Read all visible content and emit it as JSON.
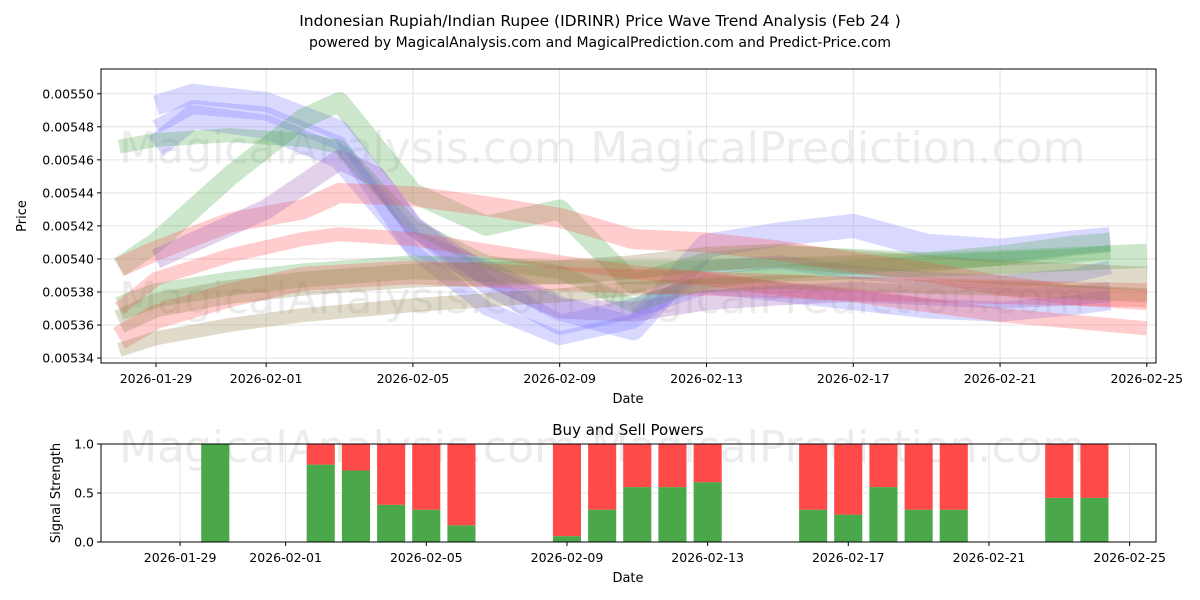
{
  "title_line1": "Indonesian Rupiah/Indian Rupee (IDRINR) Price Wave Trend Analysis (Feb 24 )",
  "title_line2": "powered by MagicalAnalysis.com and MagicalPrediction.com and Predict-Price.com",
  "watermarks": [
    "MagicalAnalysis.com",
    "MagicalPrediction.com"
  ],
  "colors": {
    "green": "#4aa84a",
    "red": "#ff4a4a",
    "blue": "#7878ff",
    "olive": "#8c7a3c"
  },
  "chart_data": [
    {
      "type": "line",
      "title": "",
      "xlabel": "Date",
      "ylabel": "Price",
      "xlim": [
        "2026-01-27 12:00",
        "2026-02-25 06:00"
      ],
      "ylim": [
        0.005337,
        0.005515
      ],
      "x_ticks": [
        "2026-01-29",
        "2026-02-01",
        "2026-02-05",
        "2026-02-09",
        "2026-02-13",
        "2026-02-17",
        "2026-02-21",
        "2026-02-25"
      ],
      "y_ticks": [
        "0.00534",
        "0.00536",
        "0.00538",
        "0.00540",
        "0.00542",
        "0.00544",
        "0.00546",
        "0.00548",
        "0.00550"
      ],
      "grid": true,
      "series": [
        {
          "name": "blue-wave-1",
          "color": "blue",
          "x": [
            "2026-01-29",
            "2026-01-30",
            "2026-02-01",
            "2026-02-03",
            "2026-02-05",
            "2026-02-07",
            "2026-02-09",
            "2026-02-11",
            "2026-02-13",
            "2026-02-15",
            "2026-02-17",
            "2026-02-19",
            "2026-02-21",
            "2026-02-23",
            "2026-02-24"
          ],
          "y": [
            0.005493,
            0.0055,
            0.005495,
            0.005478,
            0.00542,
            0.005385,
            0.00536,
            0.00537,
            0.005385,
            0.00538,
            0.005375,
            0.00537,
            0.005368,
            0.005372,
            0.005375
          ]
        },
        {
          "name": "blue-wave-2",
          "color": "blue",
          "x": [
            "2026-01-29",
            "2026-01-30",
            "2026-02-01",
            "2026-02-03",
            "2026-02-05",
            "2026-02-07",
            "2026-02-09",
            "2026-02-11",
            "2026-02-13",
            "2026-02-15",
            "2026-02-17",
            "2026-02-19",
            "2026-02-21",
            "2026-02-23",
            "2026-02-24"
          ],
          "y": [
            0.00548,
            0.005492,
            0.005488,
            0.00547,
            0.005405,
            0.00537,
            0.005352,
            0.005362,
            0.005395,
            0.005398,
            0.005392,
            0.005388,
            0.005386,
            0.00539,
            0.005395
          ]
        },
        {
          "name": "blue-wave-3",
          "color": "blue",
          "x": [
            "2026-01-29",
            "2026-01-30",
            "2026-02-01",
            "2026-02-03",
            "2026-02-05",
            "2026-02-07",
            "2026-02-09",
            "2026-02-11",
            "2026-02-13",
            "2026-02-15",
            "2026-02-17",
            "2026-02-19",
            "2026-02-21",
            "2026-02-23",
            "2026-02-24"
          ],
          "y": [
            0.005468,
            0.005486,
            0.00548,
            0.005462,
            0.00541,
            0.005392,
            0.00537,
            0.005358,
            0.005408,
            0.005415,
            0.00542,
            0.005408,
            0.005405,
            0.00541,
            0.005412
          ]
        },
        {
          "name": "green-wave-1",
          "color": "green",
          "x": [
            "2026-01-28",
            "2026-01-29",
            "2026-01-31",
            "2026-02-02",
            "2026-02-03",
            "2026-02-05",
            "2026-02-07",
            "2026-02-09",
            "2026-02-11",
            "2026-02-13",
            "2026-02-15",
            "2026-02-17",
            "2026-02-19",
            "2026-02-21",
            "2026-02-23",
            "2026-02-24"
          ],
          "y": [
            0.005395,
            0.00541,
            0.00545,
            0.005485,
            0.005495,
            0.00544,
            0.00542,
            0.00543,
            0.005385,
            0.005398,
            0.005402,
            0.0054,
            0.005398,
            0.005402,
            0.005408,
            0.00541
          ]
        },
        {
          "name": "green-wave-2",
          "color": "green",
          "x": [
            "2026-01-28",
            "2026-01-29",
            "2026-01-31",
            "2026-02-02",
            "2026-02-03",
            "2026-02-05",
            "2026-02-07",
            "2026-02-09",
            "2026-02-11",
            "2026-02-13",
            "2026-02-15",
            "2026-02-17",
            "2026-02-19",
            "2026-02-21",
            "2026-02-23",
            "2026-02-24"
          ],
          "y": [
            0.005468,
            0.005472,
            0.005475,
            0.005472,
            0.005468,
            0.00542,
            0.005398,
            0.005392,
            0.005372,
            0.005386,
            0.005392,
            0.005395,
            0.005398,
            0.0054,
            0.005402,
            0.005404
          ]
        },
        {
          "name": "green-wave-3",
          "color": "green",
          "x": [
            "2026-01-28",
            "2026-01-29",
            "2026-01-31",
            "2026-02-02",
            "2026-02-05",
            "2026-02-09",
            "2026-02-13",
            "2026-02-17",
            "2026-02-21",
            "2026-02-25"
          ],
          "y": [
            0.00537,
            0.005378,
            0.005385,
            0.00539,
            0.005395,
            0.005392,
            0.005392,
            0.005395,
            0.005398,
            0.005402
          ]
        },
        {
          "name": "red-wave-1",
          "color": "red",
          "x": [
            "2026-01-28",
            "2026-01-29",
            "2026-01-31",
            "2026-02-02",
            "2026-02-03",
            "2026-02-05",
            "2026-02-07",
            "2026-02-09",
            "2026-02-11",
            "2026-02-13",
            "2026-02-15",
            "2026-02-17",
            "2026-02-19",
            "2026-02-21",
            "2026-02-23",
            "2026-02-25"
          ],
          "y": [
            0.005395,
            0.005405,
            0.005422,
            0.00543,
            0.00544,
            0.005438,
            0.005432,
            0.005425,
            0.005412,
            0.00541,
            0.005405,
            0.005398,
            0.005392,
            0.005384,
            0.005378,
            0.005375
          ]
        },
        {
          "name": "red-wave-2",
          "color": "red",
          "x": [
            "2026-01-28",
            "2026-01-29",
            "2026-01-31",
            "2026-02-02",
            "2026-02-03",
            "2026-02-05",
            "2026-02-07",
            "2026-02-09",
            "2026-02-11",
            "2026-02-13",
            "2026-02-15",
            "2026-02-17",
            "2026-02-19",
            "2026-02-21",
            "2026-02-23",
            "2026-02-25"
          ],
          "y": [
            0.00537,
            0.005388,
            0.005402,
            0.005412,
            0.005415,
            0.005412,
            0.005405,
            0.005398,
            0.005392,
            0.005388,
            0.005382,
            0.005378,
            0.005372,
            0.005366,
            0.005362,
            0.005358
          ]
        },
        {
          "name": "red-wave-3",
          "color": "red",
          "x": [
            "2026-01-28",
            "2026-01-29",
            "2026-01-31",
            "2026-02-02",
            "2026-02-05",
            "2026-02-09",
            "2026-02-13",
            "2026-02-17",
            "2026-02-21",
            "2026-02-25"
          ],
          "y": [
            0.005352,
            0.005365,
            0.005378,
            0.005388,
            0.005392,
            0.005388,
            0.005385,
            0.005382,
            0.00538,
            0.005378
          ]
        },
        {
          "name": "purple-wave-1",
          "color": "#9b59b6",
          "x": [
            "2026-01-29",
            "2026-01-30",
            "2026-02-01",
            "2026-02-03",
            "2026-02-04",
            "2026-02-05",
            "2026-02-07",
            "2026-02-09",
            "2026-02-11",
            "2026-02-13",
            "2026-02-15",
            "2026-02-17",
            "2026-02-19",
            "2026-02-21",
            "2026-02-23",
            "2026-02-24"
          ],
          "y": [
            0.0054,
            0.00541,
            0.00543,
            0.00546,
            0.00545,
            0.00542,
            0.00539,
            0.00537,
            0.005368,
            0.005375,
            0.005378,
            0.00538,
            0.005378,
            0.005376,
            0.005378,
            0.00538
          ]
        },
        {
          "name": "olive-wave-1",
          "color": "olive",
          "x": [
            "2026-01-28",
            "2026-01-29",
            "2026-01-31",
            "2026-02-02",
            "2026-02-05",
            "2026-02-09",
            "2026-02-11",
            "2026-02-13",
            "2026-02-15",
            "2026-02-17",
            "2026-02-19",
            "2026-02-21",
            "2026-02-23",
            "2026-02-25"
          ],
          "y": [
            0.005345,
            0.005352,
            0.00536,
            0.005366,
            0.005372,
            0.005378,
            0.005382,
            0.005384,
            0.005386,
            0.005385,
            0.005383,
            0.005382,
            0.00538,
            0.005378
          ]
        },
        {
          "name": "olive-wave-2",
          "color": "olive",
          "x": [
            "2026-01-28",
            "2026-01-29",
            "2026-01-31",
            "2026-02-02",
            "2026-02-05",
            "2026-02-09",
            "2026-02-11",
            "2026-02-13",
            "2026-02-15",
            "2026-02-17",
            "2026-02-19",
            "2026-02-21",
            "2026-02-23",
            "2026-02-25"
          ],
          "y": [
            0.005362,
            0.005372,
            0.00538,
            0.005385,
            0.00539,
            0.005392,
            0.005395,
            0.0054,
            0.005402,
            0.005398,
            0.005395,
            0.005392,
            0.00539,
            0.005388
          ]
        }
      ]
    },
    {
      "type": "bar",
      "title": "Buy and Sell Powers",
      "xlabel": "Date",
      "ylabel": "Signal Strength",
      "ylim": [
        0,
        1.0
      ],
      "y_ticks": [
        "0.0",
        "0.5",
        "1.0"
      ],
      "x_ticks": [
        "2026-01-29",
        "2026-02-01",
        "2026-02-05",
        "2026-02-09",
        "2026-02-13",
        "2026-02-17",
        "2026-02-21",
        "2026-02-25"
      ],
      "bars": [
        {
          "date": "2026-01-30",
          "buy": 1.0,
          "sell": 0.0
        },
        {
          "date": "2026-02-02",
          "buy": 0.79,
          "sell": 0.21
        },
        {
          "date": "2026-02-03",
          "buy": 0.73,
          "sell": 0.27
        },
        {
          "date": "2026-02-04",
          "buy": 0.38,
          "sell": 0.62
        },
        {
          "date": "2026-02-05",
          "buy": 0.33,
          "sell": 0.67
        },
        {
          "date": "2026-02-06",
          "buy": 0.17,
          "sell": 0.83
        },
        {
          "date": "2026-02-09",
          "buy": 0.06,
          "sell": 0.94
        },
        {
          "date": "2026-02-10",
          "buy": 0.33,
          "sell": 0.67
        },
        {
          "date": "2026-02-11",
          "buy": 0.56,
          "sell": 0.44
        },
        {
          "date": "2026-02-12",
          "buy": 0.56,
          "sell": 0.44
        },
        {
          "date": "2026-02-13",
          "buy": 0.61,
          "sell": 0.39
        },
        {
          "date": "2026-02-16",
          "buy": 0.33,
          "sell": 0.67
        },
        {
          "date": "2026-02-17",
          "buy": 0.28,
          "sell": 0.72
        },
        {
          "date": "2026-02-18",
          "buy": 0.56,
          "sell": 0.44
        },
        {
          "date": "2026-02-19",
          "buy": 0.33,
          "sell": 0.67
        },
        {
          "date": "2026-02-20",
          "buy": 0.33,
          "sell": 0.67
        },
        {
          "date": "2026-02-23",
          "buy": 0.45,
          "sell": 0.55
        },
        {
          "date": "2026-02-24",
          "buy": 0.45,
          "sell": 0.55
        }
      ]
    }
  ]
}
